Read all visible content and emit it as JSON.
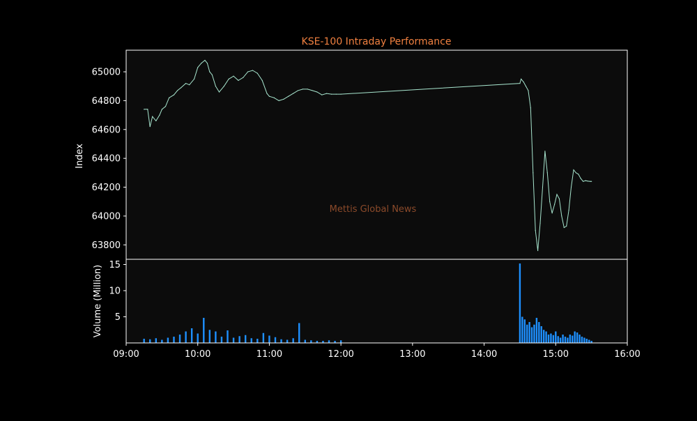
{
  "chart_data": {
    "type": "line",
    "title": "KSE-100 Intraday Performance",
    "watermark": "Mettis Global News",
    "x_ticks": [
      "09:00",
      "10:00",
      "11:00",
      "12:00",
      "13:00",
      "14:00",
      "15:00",
      "16:00"
    ],
    "xlim": [
      "09:00",
      "16:00"
    ],
    "colors": {
      "background": "#000000",
      "plot_bg": "#0c0c0c",
      "axis": "#ffffff",
      "title": "#f08040",
      "watermark": "#8b4a2a",
      "index_line": "#a8e6cf",
      "volume_bar": "#1e90ff"
    },
    "panels": [
      {
        "name": "price",
        "ylabel": "Index",
        "ylim": [
          63700,
          65150
        ],
        "y_ticks": [
          "63800",
          "64000",
          "64200",
          "64400",
          "64600",
          "64800",
          "65000"
        ],
        "series": {
          "x": [
            "09:15",
            "09:18",
            "09:20",
            "09:22",
            "09:25",
            "09:28",
            "09:30",
            "09:33",
            "09:36",
            "09:40",
            "09:43",
            "09:46",
            "09:50",
            "09:53",
            "09:57",
            "10:00",
            "10:03",
            "10:06",
            "10:08",
            "10:10",
            "10:12",
            "10:15",
            "10:18",
            "10:22",
            "10:26",
            "10:30",
            "10:34",
            "10:38",
            "10:42",
            "10:46",
            "10:50",
            "10:54",
            "10:58",
            "11:00",
            "11:04",
            "11:08",
            "11:12",
            "11:16",
            "11:20",
            "11:24",
            "11:28",
            "11:32",
            "11:36",
            "11:40",
            "11:44",
            "11:48",
            "11:52",
            "11:56",
            "12:00",
            "14:30",
            "14:31",
            "14:33",
            "14:35",
            "14:37",
            "14:39",
            "14:41",
            "14:43",
            "14:45",
            "14:47",
            "14:49",
            "14:51",
            "14:53",
            "14:55",
            "14:57",
            "14:59",
            "15:01",
            "15:03",
            "15:05",
            "15:07",
            "15:09",
            "15:11",
            "15:13",
            "15:15",
            "15:17",
            "15:19",
            "15:21",
            "15:23",
            "15:25",
            "15:27",
            "15:29",
            "15:30"
          ],
          "y": [
            64740,
            64740,
            64620,
            64690,
            64660,
            64700,
            64740,
            64760,
            64820,
            64840,
            64870,
            64890,
            64920,
            64910,
            64950,
            65030,
            65060,
            65080,
            65060,
            65000,
            64980,
            64900,
            64860,
            64900,
            64950,
            64970,
            64940,
            64960,
            65000,
            65010,
            64990,
            64940,
            64850,
            64830,
            64820,
            64800,
            64810,
            64830,
            64850,
            64870,
            64880,
            64880,
            64870,
            64860,
            64840,
            64850,
            64845,
            64845,
            64845,
            64920,
            64950,
            64930,
            64900,
            64870,
            64750,
            64300,
            63900,
            63760,
            63950,
            64200,
            64450,
            64300,
            64100,
            64020,
            64080,
            64150,
            64120,
            64000,
            63920,
            63930,
            64040,
            64200,
            64320,
            64300,
            64290,
            64260,
            64240,
            64245,
            64242,
            64240,
            64240
          ]
        }
      },
      {
        "name": "volume",
        "ylabel": "Volume (Million)",
        "ylim": [
          0,
          16
        ],
        "y_ticks": [
          "5",
          "10",
          "15"
        ],
        "series": {
          "x": [
            "09:15",
            "09:20",
            "09:25",
            "09:30",
            "09:35",
            "09:40",
            "09:45",
            "09:50",
            "09:55",
            "10:00",
            "10:05",
            "10:10",
            "10:15",
            "10:20",
            "10:25",
            "10:30",
            "10:35",
            "10:40",
            "10:45",
            "10:50",
            "10:55",
            "11:00",
            "11:05",
            "11:10",
            "11:15",
            "11:20",
            "11:25",
            "11:30",
            "11:35",
            "11:40",
            "11:45",
            "11:50",
            "11:55",
            "12:00",
            "14:30",
            "14:32",
            "14:34",
            "14:36",
            "14:38",
            "14:40",
            "14:42",
            "14:44",
            "14:46",
            "14:48",
            "14:50",
            "14:52",
            "14:54",
            "14:56",
            "14:58",
            "15:00",
            "15:02",
            "15:04",
            "15:06",
            "15:08",
            "15:10",
            "15:12",
            "15:14",
            "15:16",
            "15:18",
            "15:20",
            "15:22",
            "15:24",
            "15:26",
            "15:28",
            "15:30"
          ],
          "values": [
            0.8,
            0.7,
            0.9,
            0.6,
            1.0,
            1.2,
            1.6,
            2.2,
            2.8,
            1.8,
            4.8,
            2.5,
            2.2,
            1.2,
            2.4,
            1.0,
            1.3,
            1.5,
            0.9,
            0.8,
            1.9,
            1.4,
            1.1,
            0.7,
            0.6,
            0.9,
            3.8,
            0.6,
            0.5,
            0.4,
            0.4,
            0.5,
            0.4,
            0.5,
            15.2,
            5.0,
            4.5,
            3.5,
            4.0,
            3.0,
            3.5,
            4.8,
            4.0,
            3.2,
            2.5,
            2.2,
            1.6,
            1.8,
            1.5,
            2.2,
            1.3,
            1.0,
            1.6,
            1.2,
            1.0,
            1.6,
            1.4,
            2.2,
            2.0,
            1.6,
            1.2,
            1.0,
            0.8,
            0.6,
            0.4
          ]
        }
      }
    ],
    "grid": false,
    "legend": "none"
  }
}
